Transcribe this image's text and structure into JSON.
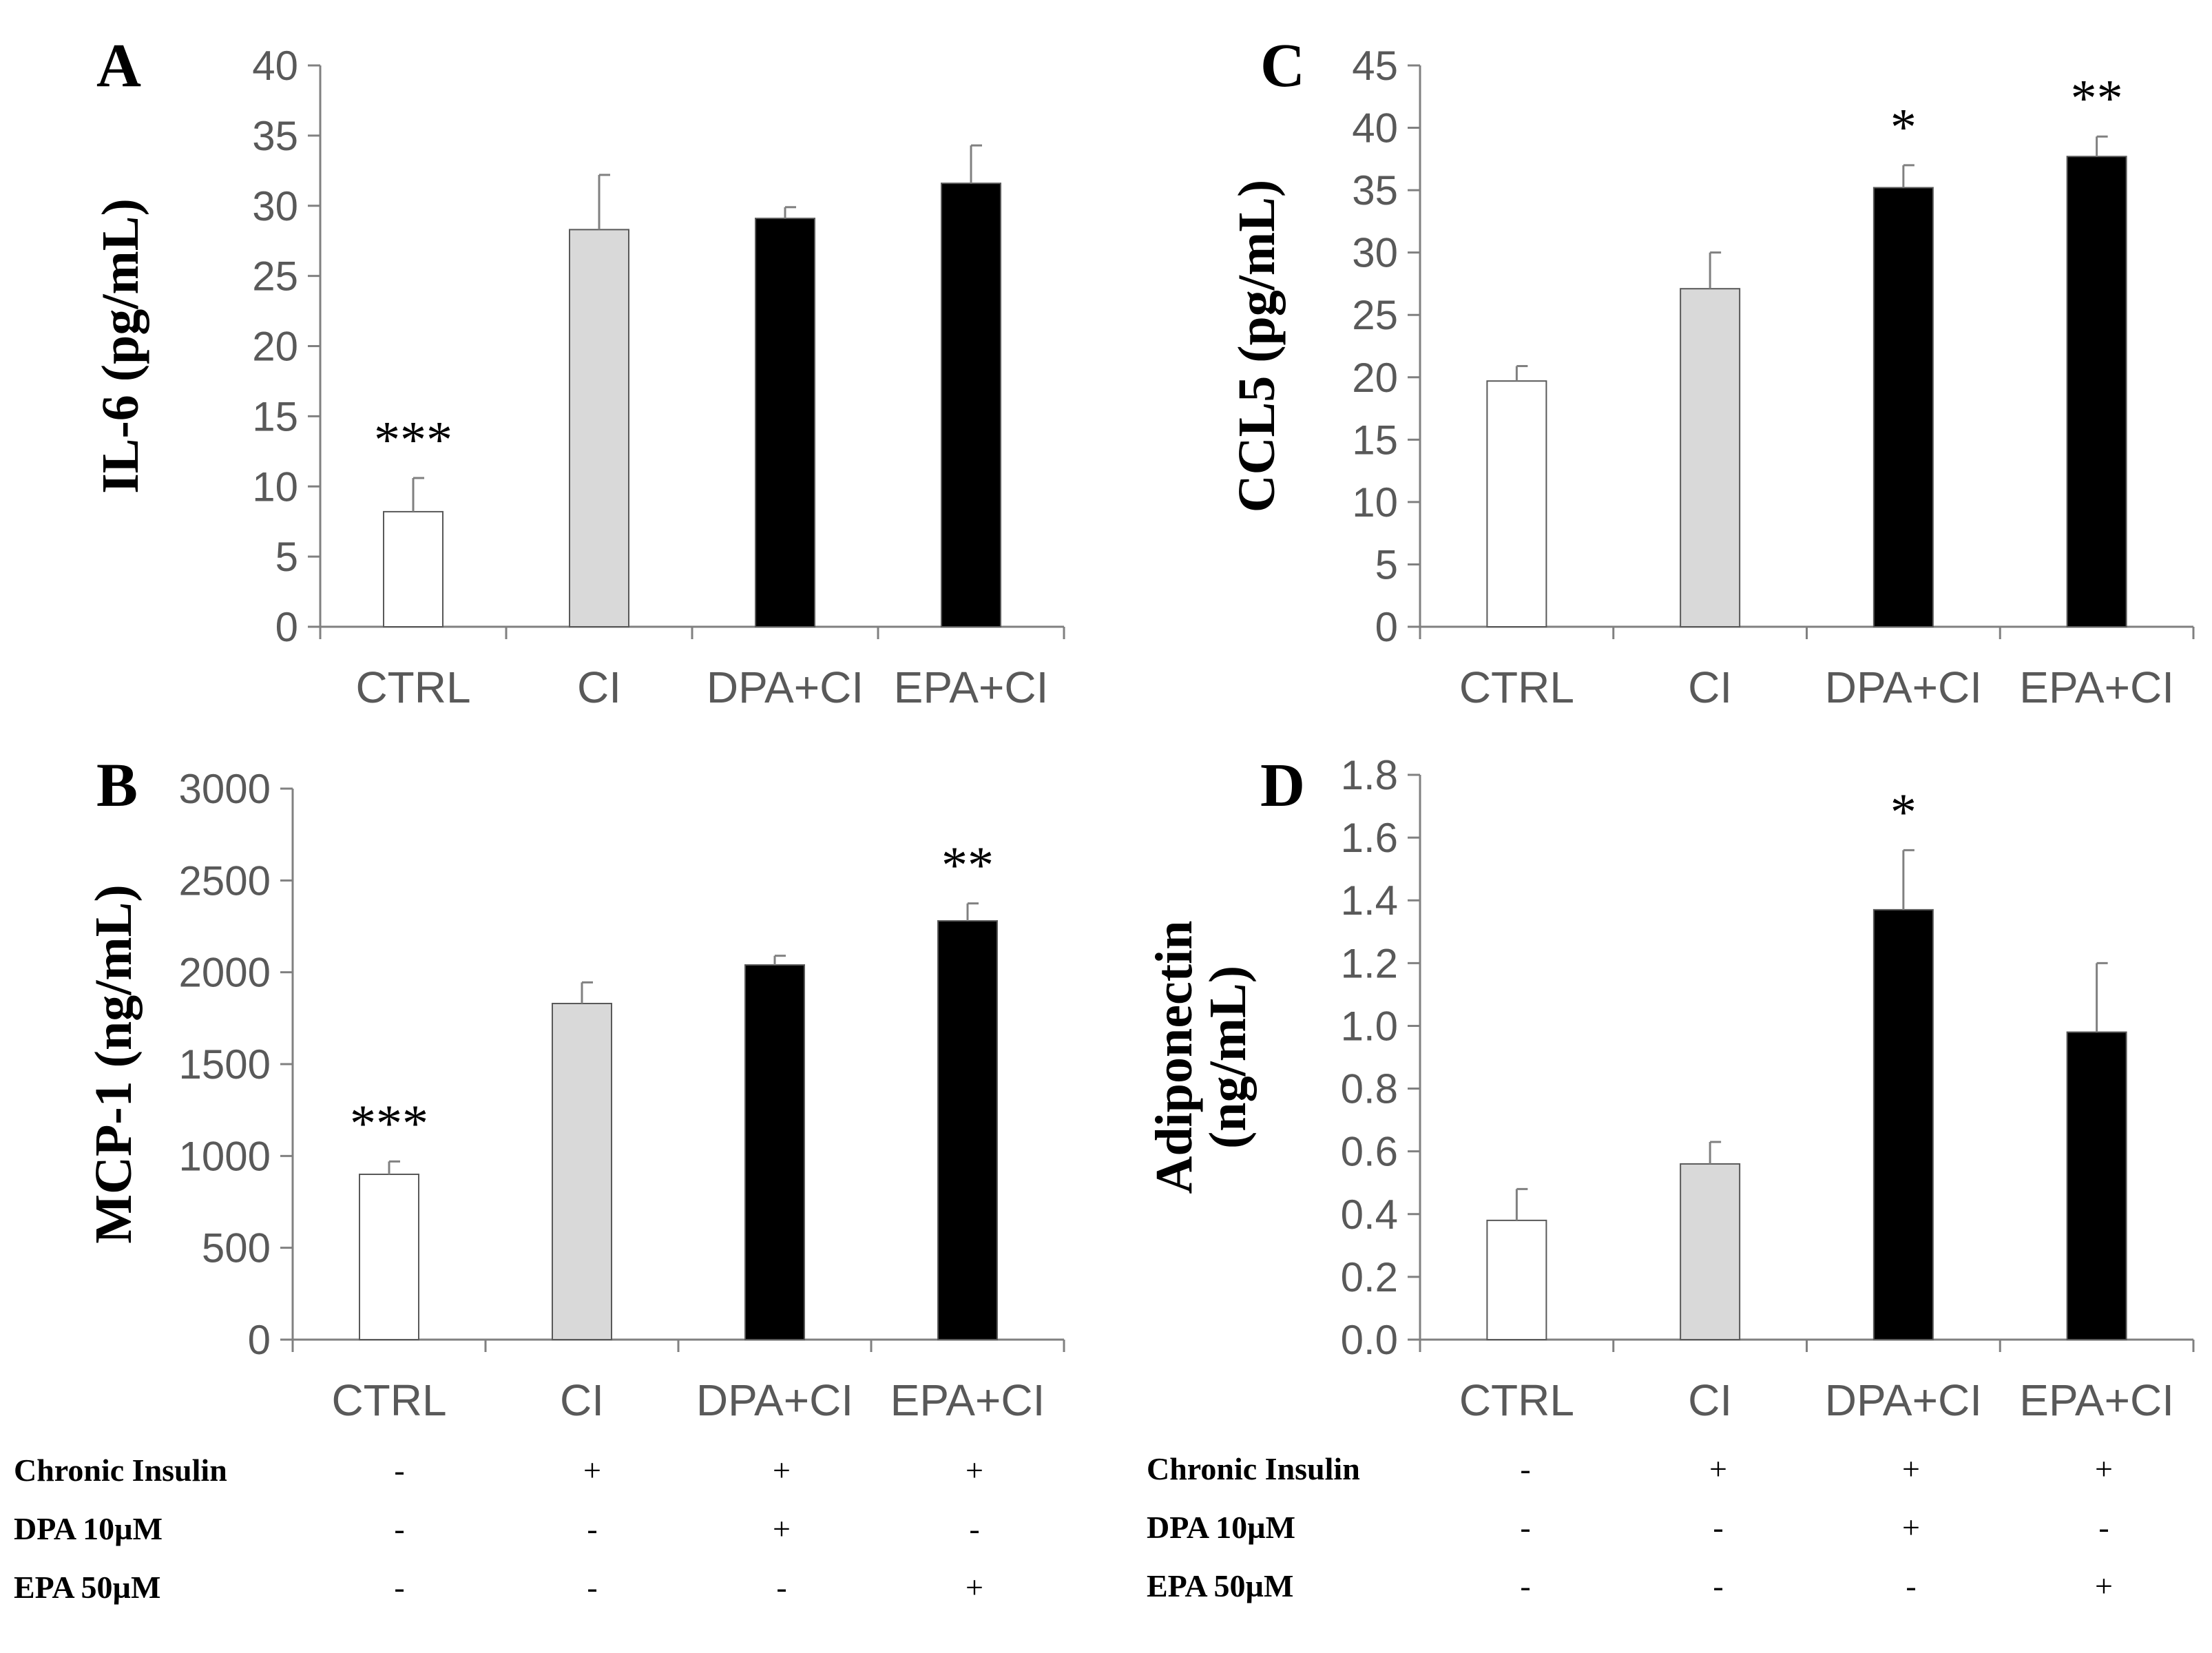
{
  "colors": {
    "CTRL": "#ffffff",
    "CI": "#d9d9d9",
    "DPA+CI": "#000000",
    "EPA+CI": "#000000",
    "axis": "#808080",
    "bar_edge": "#595959"
  },
  "chart_data": [
    {
      "panel": "A",
      "type": "bar",
      "ylabel": "IL-6 (pg/mL)",
      "categories": [
        "CTRL",
        "CI",
        "DPA+CI",
        "EPA+CI"
      ],
      "values": [
        8.2,
        28.3,
        29.1,
        31.6
      ],
      "errors": [
        2.4,
        3.9,
        0.8,
        2.7
      ],
      "significance": [
        "***",
        "",
        "",
        ""
      ],
      "ylim": [
        0,
        40
      ],
      "yticks": [
        0,
        5,
        10,
        15,
        20,
        25,
        30,
        35,
        40
      ],
      "ytick_labels": [
        "0",
        "5",
        "10",
        "15",
        "20",
        "25",
        "30",
        "35",
        "40"
      ]
    },
    {
      "panel": "B",
      "type": "bar",
      "ylabel": "MCP-1 (ng/mL)",
      "categories": [
        "CTRL",
        "CI",
        "DPA+CI",
        "EPA+CI"
      ],
      "values": [
        900,
        1830,
        2040,
        2280
      ],
      "errors": [
        70,
        115,
        50,
        95
      ],
      "significance": [
        "***",
        "",
        "",
        "**"
      ],
      "ylim": [
        0,
        3000
      ],
      "yticks": [
        0,
        500,
        1000,
        1500,
        2000,
        2500,
        3000
      ],
      "ytick_labels": [
        "0",
        "500",
        "1000",
        "1500",
        "2000",
        "2500",
        "3000"
      ]
    },
    {
      "panel": "C",
      "type": "bar",
      "ylabel": "CCL5 (pg/mL)",
      "categories": [
        "CTRL",
        "CI",
        "DPA+CI",
        "EPA+CI"
      ],
      "values": [
        19.7,
        27.1,
        35.2,
        37.7
      ],
      "errors": [
        1.2,
        2.9,
        1.8,
        1.6
      ],
      "significance": [
        "",
        "",
        "*",
        "**"
      ],
      "ylim": [
        0,
        45
      ],
      "yticks": [
        0,
        5,
        10,
        15,
        20,
        25,
        30,
        35,
        40,
        45
      ],
      "ytick_labels": [
        "0",
        "5",
        "10",
        "15",
        "20",
        "25",
        "30",
        "35",
        "40",
        "45"
      ]
    },
    {
      "panel": "D",
      "type": "bar",
      "ylabel_lines": [
        "Adiponectin",
        "(ng/mL)"
      ],
      "categories": [
        "CTRL",
        "CI",
        "DPA+CI",
        "EPA+CI"
      ],
      "values": [
        0.38,
        0.56,
        1.37,
        0.98
      ],
      "errors": [
        0.1,
        0.07,
        0.19,
        0.22
      ],
      "significance": [
        "",
        "",
        "*",
        ""
      ],
      "ylim": [
        0,
        1.8
      ],
      "yticks": [
        0,
        0.2,
        0.4,
        0.6,
        0.8,
        1.0,
        1.2,
        1.4,
        1.6,
        1.8
      ],
      "ytick_labels": [
        "0.0",
        "0.2",
        "0.4",
        "0.6",
        "0.8",
        "1.0",
        "1.2",
        "1.4",
        "1.6",
        "1.8"
      ]
    }
  ],
  "treatment_table": {
    "rows": [
      {
        "label": "Chronic Insulin",
        "marks": [
          "-",
          "+",
          "+",
          "+"
        ]
      },
      {
        "label": "DPA 10µM",
        "marks": [
          "-",
          "-",
          "+",
          "-"
        ]
      },
      {
        "label": "EPA 50µM",
        "marks": [
          "-",
          "-",
          "-",
          "+"
        ]
      }
    ]
  }
}
